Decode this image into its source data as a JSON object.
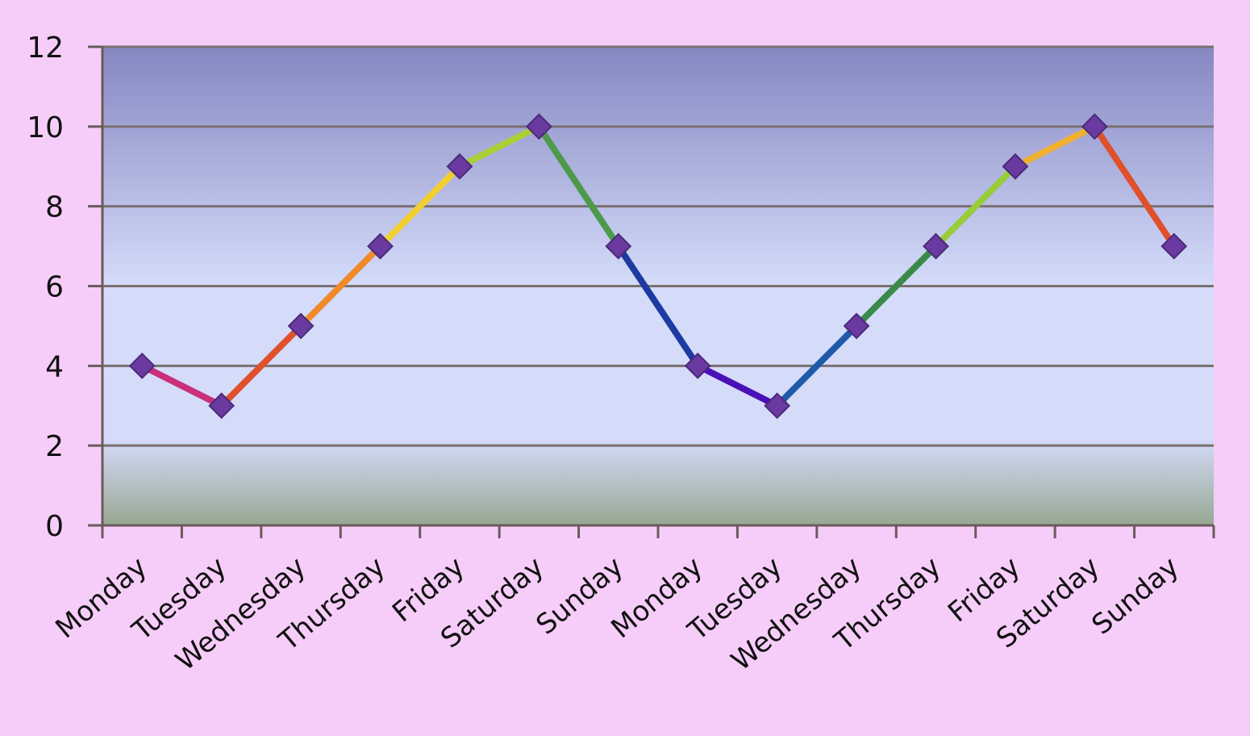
{
  "chart_data": {
    "type": "line",
    "title": "",
    "xlabel": "",
    "ylabel": "",
    "categories": [
      "Monday",
      "Tuesday",
      "Wednesday",
      "Thursday",
      "Friday",
      "Saturday",
      "Sunday",
      "Monday",
      "Tuesday",
      "Wednesday",
      "Thursday",
      "Friday",
      "Saturday",
      "Sunday"
    ],
    "series": [
      {
        "values": [
          4,
          3,
          5,
          7,
          9,
          10,
          7,
          4,
          3,
          5,
          7,
          9,
          10,
          7
        ]
      }
    ],
    "ylim": [
      0,
      12
    ],
    "yticks": [
      0,
      2,
      4,
      6,
      8,
      10,
      12
    ],
    "grid": true,
    "legend": "none",
    "marker": "diamond",
    "colors": {
      "page_background": "#f6cdf8",
      "plot_top": "#8587c1",
      "plot_middle": "#d4dcfa",
      "plot_bottom": "#97a892",
      "gridline": "#7a7070",
      "marker": "#6a3aa0",
      "segments": [
        "#cc2f7a",
        "#e0502a",
        "#f08a2a",
        "#f2cf30",
        "#a8d038",
        "#4e9a4a",
        "#1e3aa0",
        "#4a10b8",
        "#1e5aa8",
        "#3a8a4a",
        "#98cc38",
        "#f0b030",
        "#e0502a",
        "#cc2f7a"
      ]
    }
  }
}
